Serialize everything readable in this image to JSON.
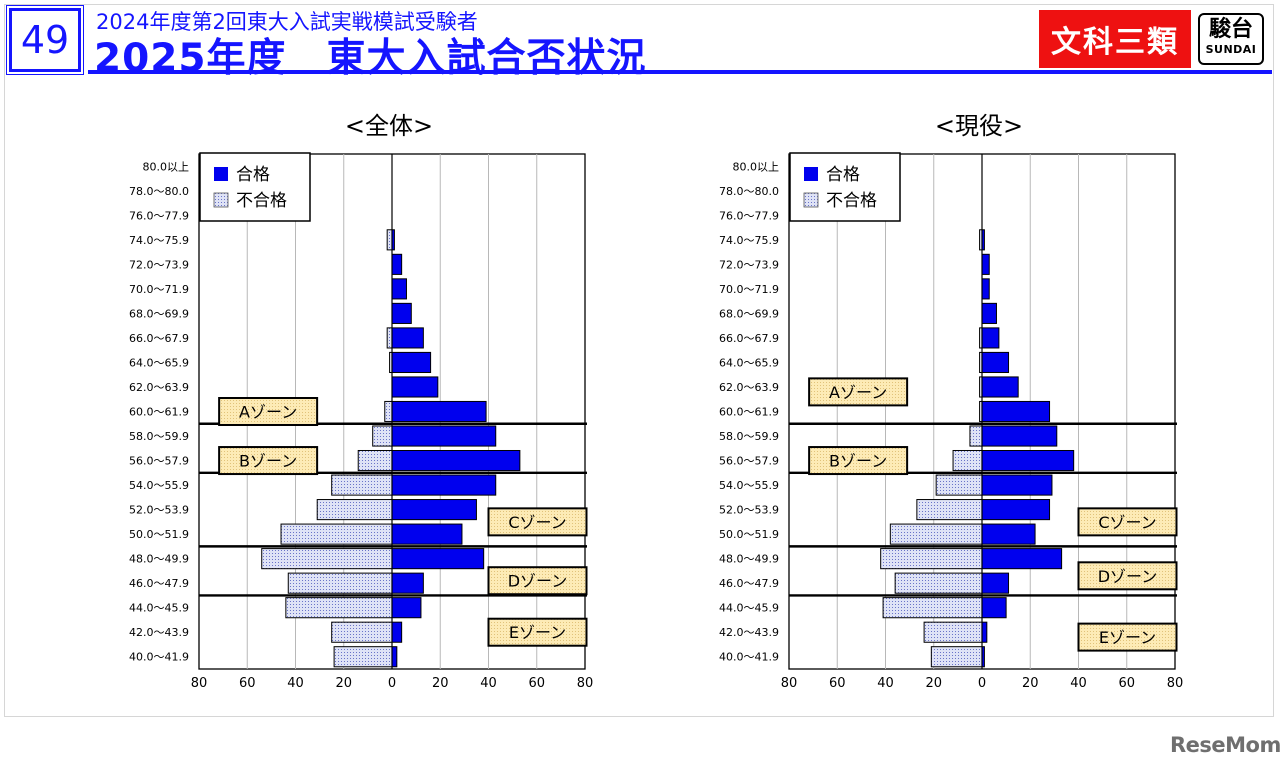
{
  "header": {
    "slide_number": "49",
    "subtitle": "2024年度第2回東大入試実戦模試受験者",
    "title": "2025年度　東大入試合否状況",
    "category": "文科三類",
    "logo_kanji": "駿台",
    "logo_roman": "SUNDAI"
  },
  "watermark": "ReseMom",
  "colors": {
    "brand_blue": "#1515ff",
    "category_red": "#ee1111",
    "pass_fill": "#0000ee",
    "fail_fill": "#dfe3f6",
    "zone_fill": "#fdebb6"
  },
  "legend": {
    "pass": "合格",
    "fail": "不合格"
  },
  "chart_data": [
    {
      "type": "bar",
      "title": "<全体>",
      "orientation": "horizontal-population-pyramid",
      "categories": [
        "80.0以上",
        "78.0～80.0",
        "76.0～77.9",
        "74.0～75.9",
        "72.0～73.9",
        "70.0～71.9",
        "68.0～69.9",
        "66.0～67.9",
        "64.0～65.9",
        "62.0～63.9",
        "60.0～61.9",
        "58.0～59.9",
        "56.0～57.9",
        "54.0～55.9",
        "52.0～53.9",
        "50.0～51.9",
        "48.0～49.9",
        "46.0～47.9",
        "44.0～45.9",
        "42.0～43.9",
        "40.0～41.9"
      ],
      "series": [
        {
          "name": "合格",
          "values": [
            0,
            0,
            0,
            1,
            4,
            6,
            8,
            13,
            16,
            19,
            39,
            43,
            53,
            43,
            35,
            29,
            38,
            13,
            12,
            4,
            2
          ]
        },
        {
          "name": "不合格",
          "values": [
            0,
            0,
            0,
            2,
            0,
            0,
            0,
            2,
            1,
            0,
            3,
            8,
            14,
            25,
            31,
            46,
            54,
            43,
            44,
            25,
            24
          ]
        }
      ],
      "xlim": [
        -80,
        80
      ],
      "xticks": [
        -80,
        -60,
        -40,
        -20,
        0,
        20,
        40,
        60,
        80
      ],
      "xtick_labels": [
        "80",
        "60",
        "40",
        "20",
        "0",
        "20",
        "40",
        "60",
        "80"
      ],
      "zone_boundaries": [
        "58.0",
        "54.0",
        "48.0",
        "44.0"
      ],
      "zones": [
        {
          "label": "Aゾーン",
          "side": "left",
          "row": 10
        },
        {
          "label": "Bゾーン",
          "side": "left",
          "row": 12
        },
        {
          "label": "Cゾーン",
          "side": "right",
          "row": 14.5
        },
        {
          "label": "Dゾーン",
          "side": "right",
          "row": 16.9
        },
        {
          "label": "Eゾーン",
          "side": "right",
          "row": 19
        }
      ]
    },
    {
      "type": "bar",
      "title": "<現役>",
      "orientation": "horizontal-population-pyramid",
      "categories": [
        "80.0以上",
        "78.0～80.0",
        "76.0～77.9",
        "74.0～75.9",
        "72.0～73.9",
        "70.0～71.9",
        "68.0～69.9",
        "66.0～67.9",
        "64.0～65.9",
        "62.0～63.9",
        "60.0～61.9",
        "58.0～59.9",
        "56.0～57.9",
        "54.0～55.9",
        "52.0～53.9",
        "50.0～51.9",
        "48.0～49.9",
        "46.0～47.9",
        "44.0～45.9",
        "42.0～43.9",
        "40.0～41.9"
      ],
      "series": [
        {
          "name": "合格",
          "values": [
            0,
            0,
            0,
            1,
            3,
            3,
            6,
            7,
            11,
            15,
            28,
            31,
            38,
            29,
            28,
            22,
            33,
            11,
            10,
            2,
            1
          ]
        },
        {
          "name": "不合格",
          "values": [
            0,
            0,
            0,
            1,
            0,
            0,
            0,
            1,
            1,
            1,
            1,
            5,
            12,
            19,
            27,
            38,
            42,
            36,
            41,
            24,
            21
          ]
        }
      ],
      "xlim": [
        -80,
        80
      ],
      "xticks": [
        -80,
        -60,
        -40,
        -20,
        0,
        20,
        40,
        60,
        80
      ],
      "xtick_labels": [
        "80",
        "60",
        "40",
        "20",
        "0",
        "20",
        "40",
        "60",
        "80"
      ],
      "zone_boundaries": [
        "58.0",
        "54.0",
        "48.0",
        "44.0"
      ],
      "zones": [
        {
          "label": "Aゾーン",
          "side": "left",
          "row": 9.2
        },
        {
          "label": "Bゾーン",
          "side": "left",
          "row": 12
        },
        {
          "label": "Cゾーン",
          "side": "right",
          "row": 14.5
        },
        {
          "label": "Dゾーン",
          "side": "right",
          "row": 16.7
        },
        {
          "label": "Eゾーン",
          "side": "right",
          "row": 19.2
        }
      ]
    }
  ]
}
